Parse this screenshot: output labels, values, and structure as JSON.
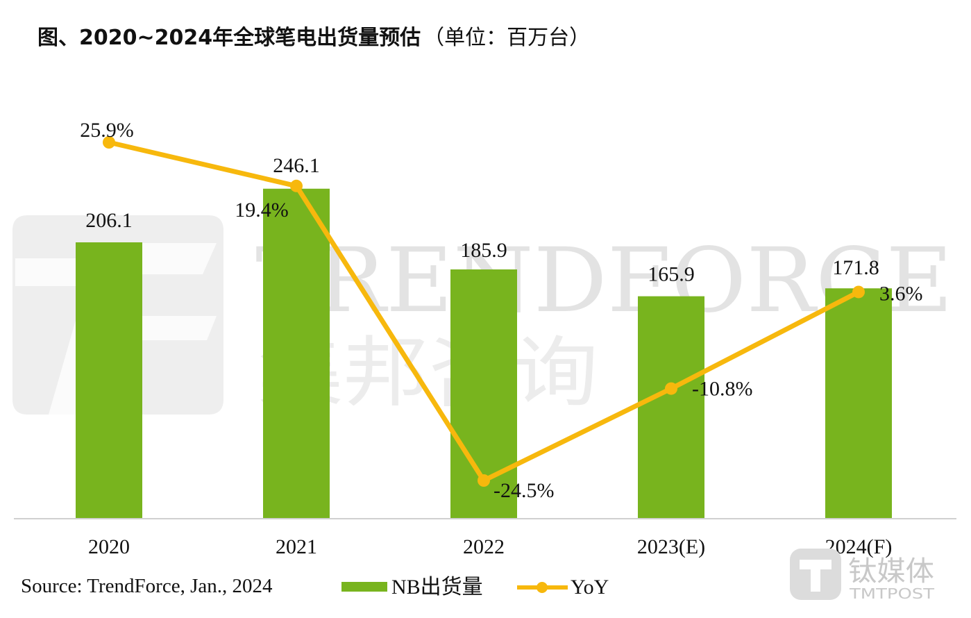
{
  "title": {
    "main": "图、2020~2024年全球笔电出货量预估",
    "unit": "（单位：百万台）"
  },
  "source": "Source: TrendForce, Jan., 2024",
  "watermark": {
    "brand_latin": "TRENDFORCE",
    "brand_cn": "集邦咨询",
    "site_cn": "钛媒体",
    "site_latin": "TMTPOST"
  },
  "colors": {
    "bar": "#78b41e",
    "line": "#f7b80d",
    "axis": "#d0d0d0"
  },
  "chart_data": {
    "type": "bar",
    "title": "图、2020~2024年全球笔电出货量预估（单位：百万台）",
    "categories": [
      "2020",
      "2021",
      "2022",
      "2023(E)",
      "2024(F)"
    ],
    "series": [
      {
        "name": "NB出货量",
        "type": "bar",
        "values": [
          206.1,
          246.1,
          185.9,
          165.9,
          171.8
        ],
        "labels": [
          "206.1",
          "246.1",
          "185.9",
          "165.9",
          "171.8"
        ],
        "axis": "left"
      },
      {
        "name": "YoY",
        "type": "line",
        "values": [
          25.9,
          19.4,
          -24.5,
          -10.8,
          3.6
        ],
        "labels": [
          "25.9%",
          "19.4%",
          "-24.5%",
          "-10.8%",
          "3.6%"
        ],
        "axis": "right",
        "unit": "%"
      }
    ],
    "bar_axis_range": [
      0,
      300
    ],
    "yoy_axis_range": [
      -30,
      30
    ],
    "grid": false,
    "legend_position": "bottom"
  }
}
